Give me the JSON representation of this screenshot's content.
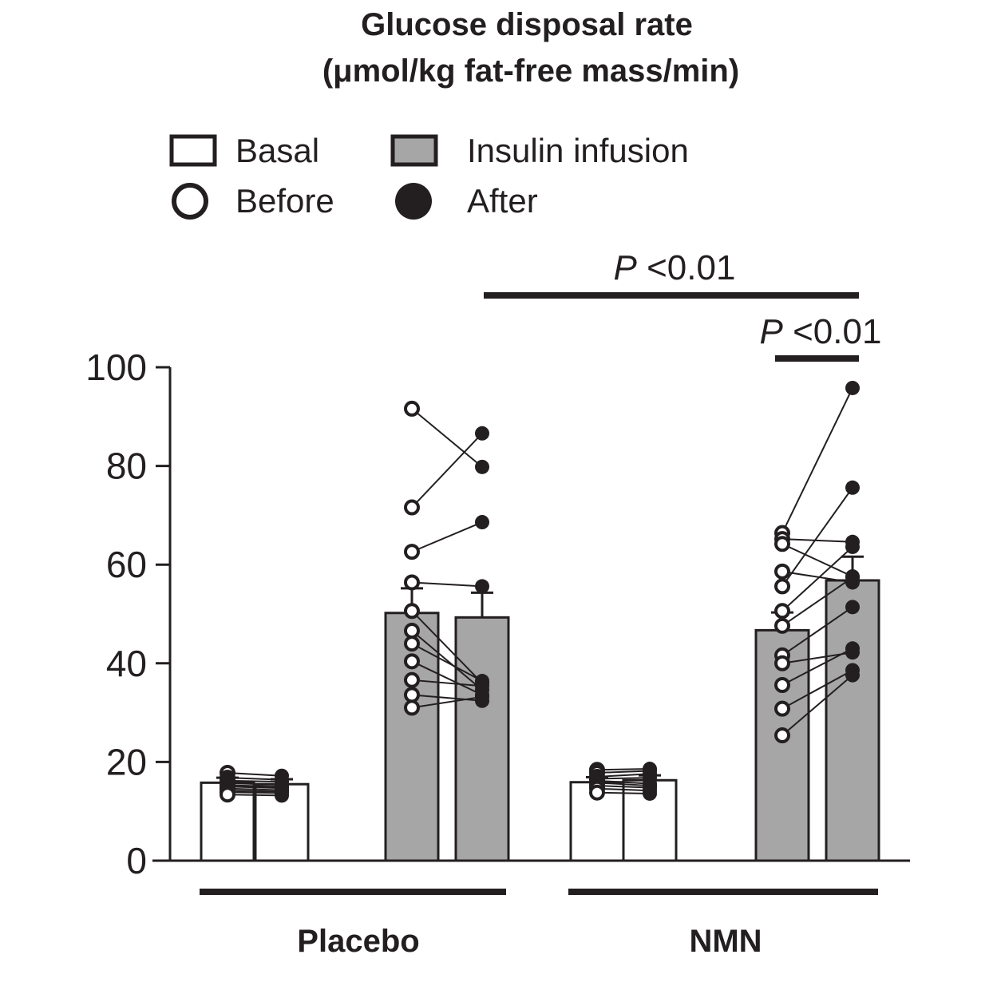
{
  "chart_data": {
    "type": "bar",
    "title_line1": "Glucose disposal rate",
    "title_line2": "(μmol/kg fat-free mass/min)",
    "ylim": [
      0,
      100
    ],
    "yticks": [
      "0",
      "20",
      "40",
      "60",
      "80",
      "100"
    ],
    "legend": {
      "basal": "Basal",
      "insulin": "Insulin infusion",
      "before": "Before",
      "after": "After"
    },
    "groups": [
      "Placebo",
      "NMN"
    ],
    "bars": [
      {
        "group": "Placebo",
        "condition": "Basal",
        "time": "Before",
        "mean": 15.8,
        "sem": 1.0
      },
      {
        "group": "Placebo",
        "condition": "Basal",
        "time": "After",
        "mean": 15.5,
        "sem": 1.0
      },
      {
        "group": "Placebo",
        "condition": "Insulin infusion",
        "time": "Before",
        "mean": 50.2,
        "sem": 5.0
      },
      {
        "group": "Placebo",
        "condition": "Insulin infusion",
        "time": "After",
        "mean": 49.3,
        "sem": 5.0
      },
      {
        "group": "NMN",
        "condition": "Basal",
        "time": "Before",
        "mean": 15.9,
        "sem": 1.0
      },
      {
        "group": "NMN",
        "condition": "Basal",
        "time": "After",
        "mean": 16.3,
        "sem": 1.0
      },
      {
        "group": "NMN",
        "condition": "Insulin infusion",
        "time": "Before",
        "mean": 46.7,
        "sem": 3.6
      },
      {
        "group": "NMN",
        "condition": "Insulin infusion",
        "time": "After",
        "mean": 56.8,
        "sem": 4.8
      }
    ],
    "paired_points": [
      {
        "bars": [
          0,
          1
        ],
        "pairs": [
          [
            17.8,
            17.2
          ],
          [
            16.8,
            16.4
          ],
          [
            16.2,
            16.0
          ],
          [
            15.7,
            15.4
          ],
          [
            15.3,
            15.0
          ],
          [
            15.0,
            14.7
          ],
          [
            14.6,
            14.3
          ],
          [
            14.2,
            14.0
          ],
          [
            13.9,
            13.7
          ],
          [
            13.4,
            13.2
          ]
        ]
      },
      {
        "bars": [
          2,
          3
        ],
        "pairs": [
          [
            91.6,
            79.8
          ],
          [
            71.6,
            86.6
          ],
          [
            62.6,
            68.6
          ],
          [
            56.4,
            55.6
          ],
          [
            50.6,
            36.0
          ],
          [
            46.6,
            34.6
          ],
          [
            44.0,
            36.4
          ],
          [
            40.4,
            33.6
          ],
          [
            36.6,
            35.4
          ],
          [
            33.6,
            32.4
          ],
          [
            31.0,
            33.2
          ]
        ]
      },
      {
        "bars": [
          4,
          5
        ],
        "pairs": [
          [
            18.4,
            18.6
          ],
          [
            17.8,
            18.2
          ],
          [
            17.0,
            17.6
          ],
          [
            16.6,
            16.8
          ],
          [
            16.2,
            15.6
          ],
          [
            15.8,
            15.2
          ],
          [
            15.2,
            14.8
          ],
          [
            14.6,
            14.2
          ],
          [
            13.8,
            13.6
          ]
        ]
      },
      {
        "bars": [
          6,
          7
        ],
        "pairs": [
          [
            66.4,
            95.8
          ],
          [
            65.2,
            64.6
          ],
          [
            64.2,
            57.6
          ],
          [
            58.6,
            56.4
          ],
          [
            55.6,
            75.6
          ],
          [
            50.6,
            63.6
          ],
          [
            47.6,
            57.4
          ],
          [
            41.6,
            51.4
          ],
          [
            40.0,
            42.2
          ],
          [
            35.6,
            43.0
          ],
          [
            30.8,
            38.6
          ],
          [
            25.4,
            37.6
          ]
        ]
      }
    ],
    "significance": [
      {
        "label_p": "P",
        "label_rest": " <0.01",
        "scope": "NMN insulin infusion vs Placebo"
      },
      {
        "label_p": "P",
        "label_rest": " <0.01",
        "scope": "NMN insulin infusion before vs after"
      }
    ]
  },
  "colors": {
    "axis": "#231f20",
    "bar_basal": "#ffffff",
    "bar_insulin": "#a6a6a6",
    "marker_before": "#ffffff",
    "marker_after": "#231f20"
  }
}
